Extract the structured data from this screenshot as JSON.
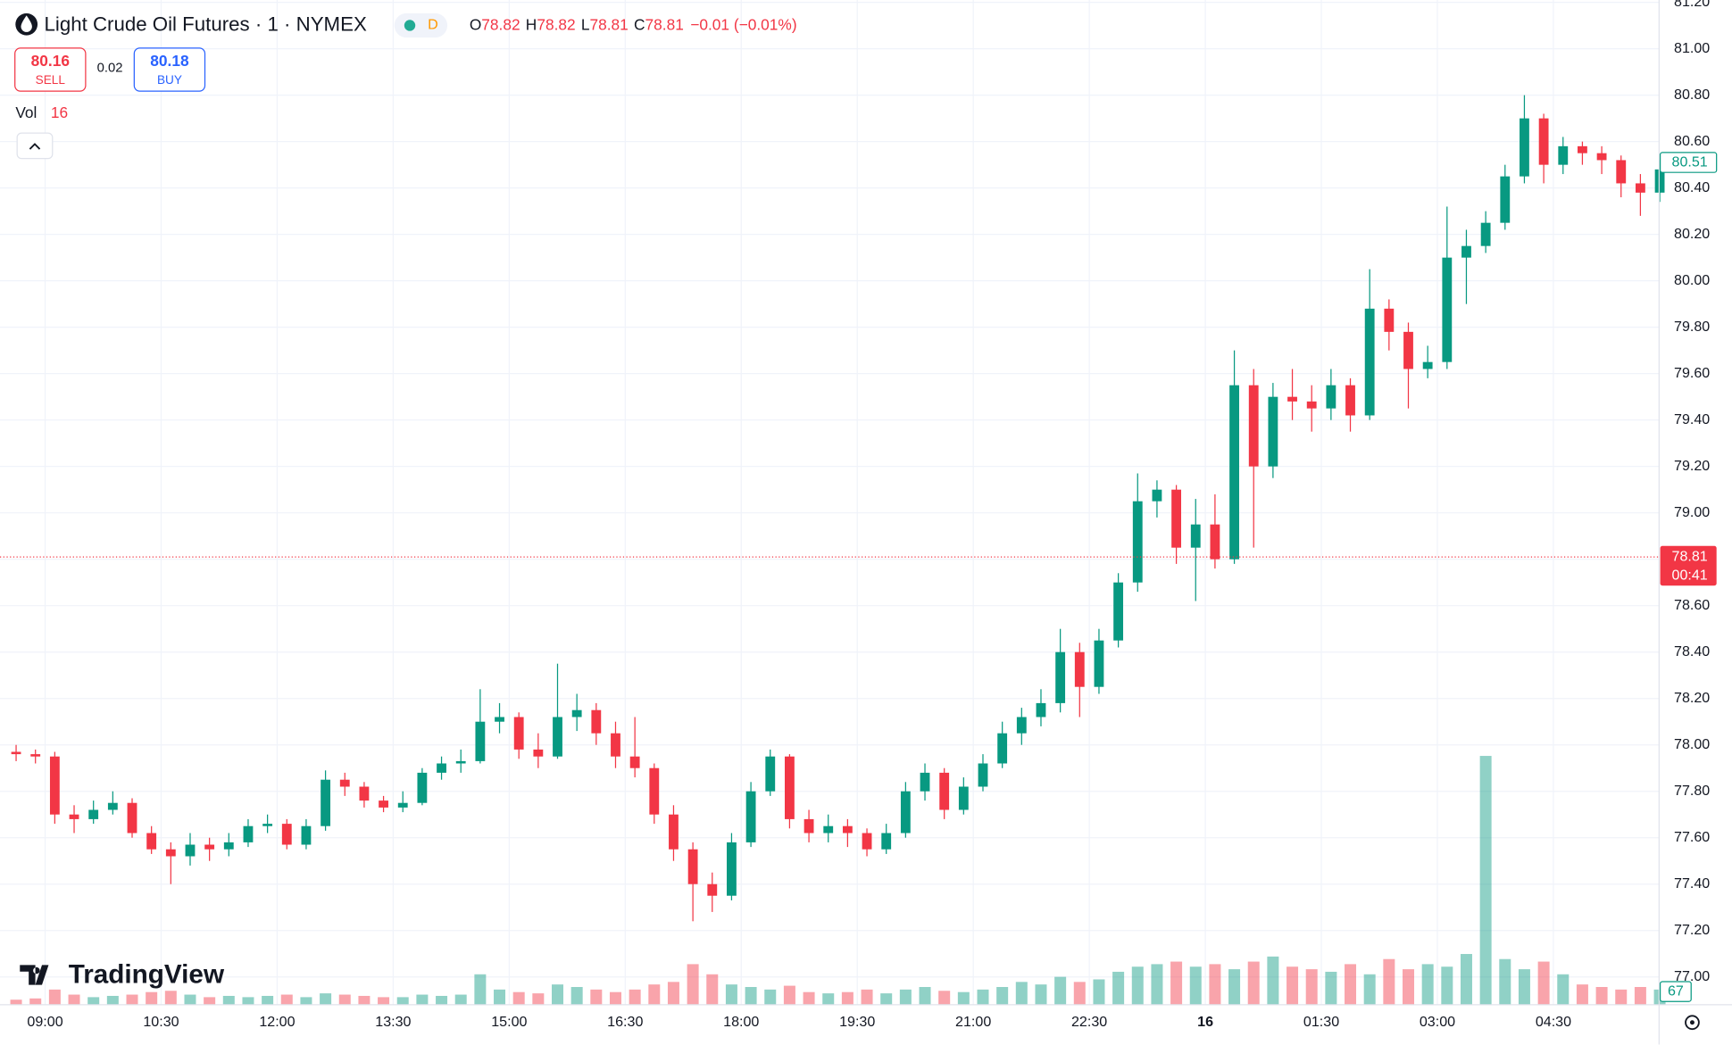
{
  "header": {
    "title": "Light Crude Oil Futures · 1 · NYMEX",
    "badge": "D",
    "o_label": "O",
    "open": "78.82",
    "h_label": "H",
    "high": "78.82",
    "l_label": "L",
    "low": "78.81",
    "c_label": "C",
    "close": "78.81",
    "change": "−0.01 (−0.01%)"
  },
  "trade": {
    "sell_price": "80.16",
    "sell_label": "SELL",
    "spread": "0.02",
    "buy_price": "80.18",
    "buy_label": "BUY"
  },
  "volume_legend": {
    "name": "Vol",
    "value": "16"
  },
  "logo": "TradingView",
  "chart_data": {
    "type": "candlestick",
    "up_color": "#089981",
    "down_color": "#f23645",
    "grid": true,
    "x": [
      -30,
      -15,
      0,
      15,
      30,
      45,
      60,
      75,
      90,
      105,
      120,
      135,
      150,
      165,
      180,
      195,
      210,
      225,
      240,
      255,
      270,
      285,
      300,
      315,
      330,
      345,
      360,
      375,
      390,
      405,
      420,
      435,
      450,
      465,
      480,
      495,
      510,
      525,
      540,
      555,
      570,
      585,
      600,
      615,
      630,
      645,
      660,
      675,
      690,
      705,
      720,
      735,
      750,
      765,
      780,
      795,
      810,
      825,
      840,
      855,
      870,
      885,
      900,
      915,
      930,
      945,
      960,
      975,
      990,
      1005,
      1020,
      1035,
      1050,
      1065,
      1080,
      1095,
      1110,
      1125,
      1140,
      1155,
      1170,
      1185,
      1200,
      1215,
      1230,
      1245
    ],
    "open": [
      77.97,
      77.96,
      77.95,
      77.7,
      77.68,
      77.72,
      77.75,
      77.62,
      77.55,
      77.52,
      77.57,
      77.55,
      77.58,
      77.65,
      77.66,
      77.57,
      77.65,
      77.85,
      77.82,
      77.76,
      77.73,
      77.75,
      77.88,
      77.92,
      77.93,
      78.1,
      78.12,
      77.98,
      77.95,
      78.12,
      78.15,
      78.05,
      77.95,
      77.9,
      77.7,
      77.55,
      77.4,
      77.35,
      77.58,
      77.8,
      77.95,
      77.68,
      77.62,
      77.65,
      77.62,
      77.55,
      77.62,
      77.8,
      77.88,
      77.72,
      77.82,
      77.92,
      78.05,
      78.12,
      78.18,
      78.4,
      78.25,
      78.45,
      78.7,
      79.05,
      79.1,
      78.85,
      78.95,
      78.8,
      79.55,
      79.2,
      79.5,
      79.48,
      79.45,
      79.55,
      79.42,
      79.88,
      79.78,
      79.62,
      79.65,
      80.1,
      80.15,
      80.25,
      80.45,
      80.7,
      80.5,
      80.58,
      80.55,
      80.52,
      80.42,
      80.38
    ],
    "high": [
      78.0,
      77.98,
      77.97,
      77.74,
      77.76,
      77.8,
      77.77,
      77.65,
      77.58,
      77.62,
      77.6,
      77.62,
      77.68,
      77.7,
      77.68,
      77.68,
      77.89,
      77.88,
      77.84,
      77.78,
      77.8,
      77.9,
      77.95,
      77.98,
      78.24,
      78.18,
      78.14,
      78.05,
      78.35,
      78.22,
      78.18,
      78.1,
      78.12,
      77.92,
      77.74,
      77.58,
      77.45,
      77.62,
      77.84,
      77.98,
      77.96,
      77.72,
      77.7,
      77.68,
      77.64,
      77.66,
      77.84,
      77.92,
      77.9,
      77.86,
      77.96,
      78.1,
      78.16,
      78.24,
      78.5,
      78.44,
      78.5,
      78.74,
      79.17,
      79.14,
      79.12,
      79.06,
      79.08,
      79.7,
      79.62,
      79.56,
      79.62,
      79.55,
      79.62,
      79.58,
      80.05,
      79.92,
      79.82,
      79.72,
      80.32,
      80.22,
      80.3,
      80.5,
      80.8,
      80.72,
      80.62,
      80.6,
      80.58,
      80.54,
      80.46,
      80.52
    ],
    "low": [
      77.93,
      77.92,
      77.66,
      77.62,
      77.66,
      77.7,
      77.6,
      77.53,
      77.4,
      77.48,
      77.5,
      77.52,
      77.56,
      77.62,
      77.55,
      77.55,
      77.63,
      77.78,
      77.73,
      77.71,
      77.71,
      77.74,
      77.85,
      77.88,
      77.92,
      78.05,
      77.94,
      77.9,
      77.94,
      78.06,
      78.0,
      77.9,
      77.86,
      77.66,
      77.5,
      77.24,
      77.28,
      77.33,
      77.56,
      77.78,
      77.64,
      77.58,
      77.58,
      77.56,
      77.52,
      77.53,
      77.6,
      77.76,
      77.68,
      77.7,
      77.8,
      77.9,
      78.0,
      78.08,
      78.14,
      78.12,
      78.22,
      78.42,
      78.66,
      78.98,
      78.78,
      78.62,
      78.76,
      78.78,
      78.85,
      79.15,
      79.4,
      79.35,
      79.4,
      79.35,
      79.4,
      79.7,
      79.45,
      79.58,
      79.62,
      79.9,
      80.12,
      80.22,
      80.42,
      80.42,
      80.46,
      80.5,
      80.46,
      80.36,
      80.28,
      80.34
    ],
    "close": [
      77.96,
      77.95,
      77.7,
      77.68,
      77.72,
      77.75,
      77.62,
      77.55,
      77.52,
      77.57,
      77.55,
      77.58,
      77.65,
      77.66,
      77.57,
      77.65,
      77.85,
      77.82,
      77.76,
      77.73,
      77.75,
      77.88,
      77.92,
      77.93,
      78.1,
      78.12,
      77.98,
      77.95,
      78.12,
      78.15,
      78.05,
      77.95,
      77.9,
      77.7,
      77.55,
      77.4,
      77.35,
      77.58,
      77.8,
      77.95,
      77.68,
      77.62,
      77.65,
      77.62,
      77.55,
      77.62,
      77.8,
      77.88,
      77.72,
      77.82,
      77.92,
      78.05,
      78.12,
      78.18,
      78.4,
      78.25,
      78.45,
      78.7,
      79.05,
      79.1,
      78.85,
      78.95,
      78.8,
      79.55,
      79.2,
      79.5,
      79.48,
      79.45,
      79.55,
      79.42,
      79.88,
      79.78,
      79.62,
      79.65,
      80.1,
      80.15,
      80.25,
      80.45,
      80.7,
      80.5,
      80.58,
      80.55,
      80.52,
      80.42,
      80.38,
      80.48
    ],
    "volume": [
      20,
      25,
      60,
      40,
      30,
      35,
      40,
      50,
      55,
      40,
      30,
      35,
      30,
      35,
      40,
      30,
      45,
      40,
      35,
      30,
      30,
      40,
      35,
      40,
      120,
      60,
      50,
      45,
      80,
      70,
      60,
      50,
      60,
      80,
      90,
      160,
      120,
      80,
      70,
      60,
      75,
      50,
      45,
      50,
      60,
      45,
      60,
      70,
      55,
      50,
      60,
      70,
      90,
      80,
      110,
      90,
      100,
      130,
      150,
      160,
      170,
      150,
      160,
      140,
      170,
      190,
      150,
      140,
      130,
      160,
      120,
      180,
      140,
      160,
      150,
      200,
      980,
      180,
      140,
      170,
      120,
      80,
      70,
      60,
      70,
      60
    ],
    "volume_ylim": [
      0,
      1000
    ],
    "xlim": [
      -35,
      1252
    ],
    "xticks": [
      {
        "value": 0,
        "label": "09:00"
      },
      {
        "value": 90,
        "label": "10:30"
      },
      {
        "value": 180,
        "label": "12:00"
      },
      {
        "value": 270,
        "label": "13:30"
      },
      {
        "value": 360,
        "label": "15:00"
      },
      {
        "value": 450,
        "label": "16:30"
      },
      {
        "value": 540,
        "label": "18:00"
      },
      {
        "value": 630,
        "label": "19:30"
      },
      {
        "value": 720,
        "label": "21:00"
      },
      {
        "value": 810,
        "label": "22:30"
      },
      {
        "value": 900,
        "label": "16"
      },
      {
        "value": 990,
        "label": "01:30"
      },
      {
        "value": 1080,
        "label": "03:00"
      },
      {
        "value": 1170,
        "label": "04:30"
      }
    ],
    "ylim": [
      76.88,
      81.21
    ],
    "yticks": [
      {
        "value": 77,
        "label": "77.00"
      },
      {
        "value": 77.2,
        "label": "77.20"
      },
      {
        "value": 77.4,
        "label": "77.40"
      },
      {
        "value": 77.6,
        "label": "77.60"
      },
      {
        "value": 77.8,
        "label": "77.80"
      },
      {
        "value": 78,
        "label": "78.00"
      },
      {
        "value": 78.2,
        "label": "78.20"
      },
      {
        "value": 78.4,
        "label": "78.40"
      },
      {
        "value": 78.6,
        "label": "78.60"
      },
      {
        "value": 78.8,
        "label": "78.80"
      },
      {
        "value": 79,
        "label": "79.00"
      },
      {
        "value": 79.2,
        "label": "79.20"
      },
      {
        "value": 79.4,
        "label": "79.40"
      },
      {
        "value": 79.6,
        "label": "79.60"
      },
      {
        "value": 79.8,
        "label": "79.80"
      },
      {
        "value": 80,
        "label": "80.00"
      },
      {
        "value": 80.2,
        "label": "80.20"
      },
      {
        "value": 80.4,
        "label": "80.40"
      },
      {
        "value": 80.6,
        "label": "80.60"
      },
      {
        "value": 80.8,
        "label": "80.80"
      },
      {
        "value": 81,
        "label": "81.00"
      },
      {
        "value": 81.2,
        "label": "81.20"
      }
    ],
    "last_price": {
      "value": 78.81,
      "label": "78.81"
    },
    "countdown": "00:41",
    "marker_price": {
      "value": 80.51,
      "label": "80.51"
    },
    "volume_axis_label": "67"
  }
}
